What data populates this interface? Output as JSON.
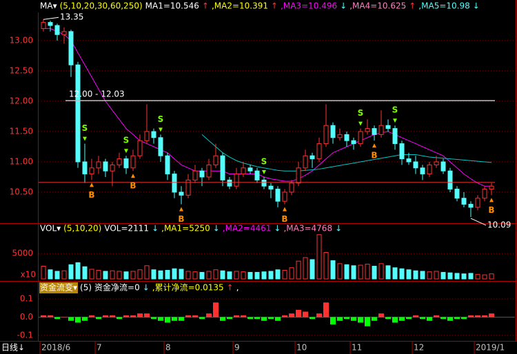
{
  "chart_data": [
    {
      "type": "candlestick",
      "header": [
        {
          "text": "MA▾",
          "color": "#ffffff"
        },
        {
          "text": "(5,10,20,30,60,250)",
          "color": "#ffff00"
        },
        {
          "text": "MA1=10.546",
          "color": "#ffffff"
        },
        {
          "text": "↑",
          "color": "#ff3232"
        },
        {
          "text": ",MA2=10.391",
          "color": "#ffff00"
        },
        {
          "text": "↑",
          "color": "#ff3232"
        },
        {
          "text": ",MA3=10.496",
          "color": "#ff00ff"
        },
        {
          "text": "↓",
          "color": "#54fcfc"
        },
        {
          "text": ",MA4=10.625",
          "color": "#ff80c0"
        },
        {
          "text": "↑",
          "color": "#ff3232"
        },
        {
          "text": ",MA5=10.98",
          "color": "#54fcfc"
        },
        {
          "text": "↓",
          "color": "#54fcfc"
        }
      ],
      "categories": [
        "2018/6",
        null,
        null,
        null,
        null,
        null,
        null,
        null,
        "7",
        null,
        null,
        null,
        null,
        null,
        null,
        null,
        null,
        null,
        "8",
        null,
        null,
        null,
        null,
        null,
        null,
        null,
        null,
        null,
        "9",
        null,
        null,
        null,
        null,
        null,
        null,
        null,
        null,
        "10",
        null,
        null,
        null,
        null,
        null,
        null,
        null,
        "11",
        null,
        null,
        null,
        null,
        null,
        null,
        null,
        null,
        "12",
        null,
        null,
        null,
        null,
        null,
        null,
        null,
        null,
        "2019/1",
        null,
        null
      ],
      "open": [
        13.2,
        13.3,
        13.25,
        13.1,
        13.15,
        12.6,
        11.0,
        10.8,
        10.9,
        11.0,
        10.85,
        10.95,
        11.05,
        10.9,
        11.1,
        11.35,
        11.5,
        11.4,
        11.1,
        10.8,
        10.5,
        10.45,
        10.7,
        10.85,
        10.75,
        10.95,
        11.1,
        10.7,
        10.6,
        10.8,
        10.9,
        10.85,
        10.7,
        10.6,
        10.55,
        10.35,
        10.5,
        10.65,
        10.9,
        11.1,
        11.05,
        11.3,
        11.6,
        11.4,
        11.45,
        11.35,
        11.3,
        11.5,
        11.55,
        11.45,
        11.6,
        11.55,
        11.3,
        11.05,
        11.0,
        10.9,
        10.8,
        10.95,
        11.0,
        10.85,
        10.55,
        10.4,
        10.3,
        10.25,
        10.4,
        10.55
      ],
      "high": [
        13.35,
        13.33,
        13.28,
        13.22,
        13.18,
        12.65,
        11.3,
        11.05,
        11.1,
        11.05,
        11.0,
        11.15,
        11.1,
        11.2,
        11.45,
        11.95,
        11.55,
        11.45,
        11.15,
        10.85,
        10.6,
        10.8,
        10.95,
        10.9,
        11.05,
        11.3,
        11.15,
        10.75,
        10.9,
        11.0,
        10.95,
        10.9,
        10.75,
        10.65,
        10.6,
        10.55,
        10.7,
        11.0,
        11.2,
        11.15,
        11.4,
        11.95,
        11.65,
        11.55,
        11.5,
        11.4,
        11.55,
        11.7,
        11.6,
        11.85,
        11.7,
        11.6,
        11.35,
        11.15,
        11.1,
        10.95,
        11.0,
        11.1,
        11.05,
        10.9,
        10.6,
        10.5,
        10.35,
        10.45,
        10.6,
        10.65
      ],
      "low": [
        13.15,
        13.15,
        13.0,
        12.95,
        12.4,
        10.9,
        10.65,
        10.7,
        10.8,
        10.75,
        10.6,
        10.9,
        10.8,
        10.85,
        11.05,
        11.3,
        11.3,
        11.0,
        10.7,
        10.4,
        10.3,
        10.4,
        10.65,
        10.6,
        10.7,
        10.9,
        10.6,
        10.55,
        10.55,
        10.75,
        10.8,
        10.65,
        10.55,
        10.4,
        10.25,
        10.3,
        10.45,
        10.6,
        10.85,
        10.9,
        11.0,
        11.25,
        11.3,
        11.35,
        11.25,
        11.2,
        11.25,
        11.45,
        11.35,
        11.4,
        11.5,
        11.2,
        10.95,
        10.95,
        10.8,
        10.7,
        10.75,
        10.9,
        10.8,
        10.5,
        10.35,
        10.25,
        10.09,
        10.2,
        10.35,
        10.45
      ],
      "close": [
        13.3,
        13.25,
        13.1,
        13.15,
        12.6,
        11.0,
        10.8,
        10.9,
        11.0,
        10.85,
        10.95,
        11.05,
        10.9,
        11.1,
        11.35,
        11.5,
        11.4,
        11.1,
        10.8,
        10.5,
        10.45,
        10.7,
        10.85,
        10.75,
        10.95,
        11.1,
        10.7,
        10.6,
        10.8,
        10.9,
        10.85,
        10.7,
        10.6,
        10.55,
        10.35,
        10.5,
        10.65,
        10.9,
        11.1,
        11.05,
        11.3,
        11.6,
        11.4,
        11.45,
        11.35,
        11.3,
        11.5,
        11.55,
        11.45,
        11.6,
        11.55,
        11.3,
        11.05,
        11.0,
        10.9,
        10.8,
        10.95,
        11.0,
        10.85,
        10.55,
        10.4,
        10.3,
        10.25,
        10.4,
        10.55,
        10.6
      ],
      "up_color": "#ff3232",
      "down_color": "#54fcfc",
      "ylim": [
        10.0,
        13.466
      ],
      "yticks": [
        {
          "value": 13,
          "label": "13.00"
        },
        {
          "value": 12.5,
          "label": "12.50"
        },
        {
          "value": 12,
          "label": "12.00"
        },
        {
          "value": 11.5,
          "label": "11.50"
        },
        {
          "value": 11,
          "label": "11.00"
        },
        {
          "value": 10.5,
          "label": "10.50"
        }
      ],
      "grid": true,
      "lines": [
        {
          "color": "#ff00ff",
          "values": [
            13.2,
            13.2,
            13.15,
            13.1,
            13.0,
            12.8,
            12.6,
            12.4,
            12.2,
            12.0,
            11.85,
            11.7,
            11.55,
            11.45,
            11.35,
            11.3,
            11.25,
            11.2,
            11.15,
            11.05,
            10.95,
            10.9,
            10.85,
            10.85,
            10.85,
            10.85,
            10.85,
            10.8,
            10.8,
            10.8,
            10.8,
            10.8,
            10.75,
            10.72,
            10.7,
            10.68,
            10.68,
            10.72,
            10.78,
            10.85,
            10.95,
            11.05,
            11.15,
            11.2,
            11.25,
            11.3,
            11.35,
            11.4,
            11.45,
            11.48,
            11.5,
            11.45,
            11.4,
            11.35,
            11.3,
            11.25,
            11.2,
            11.15,
            11.1,
            11.0,
            10.9,
            10.8,
            10.72,
            10.65,
            10.6,
            10.6
          ]
        },
        {
          "color": "#00c8c8",
          "values": [
            null,
            null,
            null,
            null,
            null,
            null,
            null,
            null,
            null,
            null,
            null,
            null,
            null,
            null,
            null,
            null,
            null,
            null,
            null,
            null,
            null,
            null,
            null,
            11.45,
            11.35,
            11.25,
            11.15,
            11.08,
            11.02,
            10.98,
            10.95,
            10.92,
            10.9,
            10.88,
            10.86,
            10.85,
            10.85,
            10.85,
            10.86,
            10.87,
            10.88,
            10.9,
            10.92,
            10.94,
            10.96,
            10.98,
            11.0,
            11.02,
            11.04,
            11.06,
            11.08,
            11.1,
            11.12,
            11.12,
            11.12,
            11.1,
            11.08,
            11.07,
            11.06,
            11.05,
            11.04,
            11.03,
            11.02,
            11.01,
            11.0,
            10.99
          ]
        }
      ],
      "annotations": [
        {
          "text": "13.35",
          "index": 0,
          "at": "high"
        },
        {
          "text": "10.09",
          "index": 62,
          "at": "low"
        }
      ],
      "level_line": {
        "label": "12.00 - 12.03",
        "value": 12.01,
        "color": "#c0c0c0"
      },
      "reference_line": {
        "value": 10.66,
        "color": "#ff3232"
      },
      "signals": [
        {
          "label": "S",
          "index": 6,
          "color": "#7cfc00",
          "at": "high"
        },
        {
          "label": "B",
          "index": 7,
          "color": "#ff8c00",
          "at": "low"
        },
        {
          "label": "S",
          "index": 12,
          "color": "#7cfc00",
          "at": "high"
        },
        {
          "label": "B",
          "index": 13,
          "color": "#ff8c00",
          "at": "low"
        },
        {
          "label": "S",
          "index": 17,
          "color": "#7cfc00",
          "at": "high"
        },
        {
          "label": "B",
          "index": 20,
          "color": "#ff8c00",
          "at": "low"
        },
        {
          "label": "S",
          "index": 32,
          "color": "#7cfc00",
          "at": "high"
        },
        {
          "label": "B",
          "index": 35,
          "color": "#ff8c00",
          "at": "low"
        },
        {
          "label": "S",
          "index": 46,
          "color": "#7cfc00",
          "at": "high"
        },
        {
          "label": "B",
          "index": 48,
          "color": "#ff8c00",
          "at": "low"
        },
        {
          "label": "S",
          "index": 51,
          "color": "#7cfc00",
          "at": "high"
        },
        {
          "label": "B",
          "index": 65,
          "color": "#ff8c00",
          "at": "low"
        }
      ]
    },
    {
      "type": "volume",
      "header": [
        {
          "text": "VOL▾",
          "color": "#ffffff"
        },
        {
          "text": "(5,10,20)",
          "color": "#ffff00"
        },
        {
          "text": "VOL=2111",
          "color": "#ffffff"
        },
        {
          "text": "↓",
          "color": "#54fcfc"
        },
        {
          "text": ",MA1=5250",
          "color": "#ffff00"
        },
        {
          "text": "↓",
          "color": "#54fcfc"
        },
        {
          "text": ",MA2=4461",
          "color": "#ff00ff"
        },
        {
          "text": "↓",
          "color": "#54fcfc"
        },
        {
          "text": ",MA3=4768",
          "color": "#ff80c0"
        },
        {
          "text": "↓",
          "color": "#54fcfc"
        }
      ],
      "values": [
        2500,
        1800,
        1500,
        1600,
        2800,
        3200,
        2400,
        1900,
        1700,
        1500,
        1600,
        1500,
        1400,
        1500,
        1800,
        2600,
        1800,
        1600,
        1700,
        2000,
        1900,
        1500,
        1400,
        1300,
        1500,
        1800,
        1600,
        1400,
        1500,
        1400,
        1300,
        1300,
        1400,
        1500,
        1800,
        1700,
        2200,
        3500,
        4200,
        3800,
        8700,
        5200,
        3600,
        3000,
        2800,
        2600,
        2700,
        2900,
        2500,
        3000,
        2600,
        2200,
        2000,
        1800,
        1600,
        1500,
        1400,
        1500,
        1300,
        1200,
        1100,
        1000,
        1100,
        900,
        800,
        1000
      ],
      "ylim": [
        0,
        8800
      ],
      "yticks": [
        5000
      ],
      "unit_label": "x10",
      "grid": true
    },
    {
      "type": "flow",
      "header": [
        {
          "text": "资金流变▾",
          "color": "#ffffff",
          "background": "#b8860b"
        },
        {
          "text": "(5)",
          "color": "#ffffff"
        },
        {
          "text": "资金净流=0",
          "color": "#ffffff"
        },
        {
          "text": "↓",
          "color": "#54fcfc"
        },
        {
          "text": ",累计净流=0.0135",
          "color": "#ffff00"
        },
        {
          "text": "↑",
          "color": "#ff3232"
        },
        {
          "text": ",",
          "color": "#ffffff"
        }
      ],
      "values": [
        0.01,
        0.01,
        -0.01,
        0.0,
        -0.02,
        -0.03,
        -0.02,
        0.01,
        -0.01,
        0.01,
        0.01,
        -0.01,
        0.01,
        0.01,
        0.02,
        0.02,
        -0.01,
        -0.02,
        -0.03,
        -0.02,
        -0.02,
        0.01,
        0.01,
        -0.01,
        0.02,
        0.08,
        -0.02,
        -0.01,
        0.01,
        0.01,
        -0.01,
        -0.01,
        -0.02,
        -0.01,
        -0.02,
        0.01,
        0.02,
        0.04,
        0.03,
        -0.01,
        0.02,
        0.08,
        -0.04,
        -0.02,
        -0.01,
        -0.02,
        -0.03,
        -0.05,
        -0.02,
        0.02,
        -0.01,
        -0.03,
        -0.02,
        -0.01,
        0.01,
        -0.01,
        -0.02,
        0.01,
        -0.01,
        -0.02,
        -0.01,
        -0.01,
        0.01,
        0.01,
        0.01,
        0.02
      ],
      "positive_color": "#ff3232",
      "negative_color": "#00ff00",
      "ylim": [
        -0.13,
        0.19
      ],
      "yticks": [
        {
          "value": 0.1,
          "label": "0.1"
        },
        {
          "value": 0,
          "label": "0.0"
        },
        {
          "value": -0.1,
          "label": "-0.1"
        }
      ],
      "grid": true
    }
  ],
  "footer": {
    "period": "日线↓"
  }
}
